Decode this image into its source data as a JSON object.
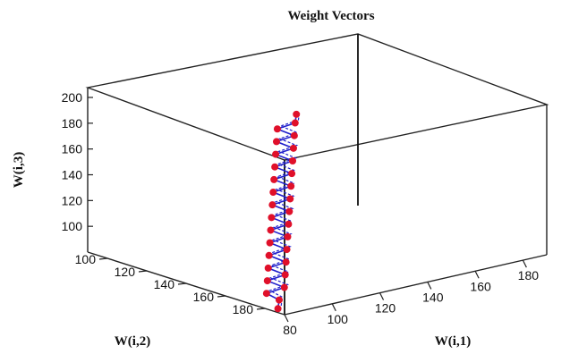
{
  "chart_data": {
    "type": "line",
    "title": "Weight Vectors",
    "xlabel": "W(i,1)",
    "ylabel": "W(i,2)",
    "zlabel": "W(i,3)",
    "x_ticks": [
      "80",
      "100",
      "120",
      "140",
      "160",
      "180"
    ],
    "y_ticks": [
      "100",
      "120",
      "140",
      "160",
      "180"
    ],
    "z_ticks": [
      "100",
      "120",
      "140",
      "160",
      "180",
      "200"
    ],
    "xlim": [
      80,
      190
    ],
    "ylim": [
      90,
      190
    ],
    "zlim": [
      80,
      200
    ],
    "grid": false,
    "line_color": "#2020cc",
    "marker_color": "#e0102a",
    "series": [
      {
        "points": [
          [
            83,
            183,
            80
          ],
          [
            86,
            180,
            84
          ],
          [
            84,
            176,
            88
          ],
          [
            89,
            179,
            92
          ],
          [
            86,
            174,
            96
          ],
          [
            91,
            177,
            100
          ],
          [
            88,
            172,
            104
          ],
          [
            93,
            175,
            108
          ],
          [
            90,
            170,
            112
          ],
          [
            95,
            173,
            116
          ],
          [
            92,
            168,
            120
          ],
          [
            97,
            171,
            124
          ],
          [
            94,
            166,
            128
          ],
          [
            99,
            169,
            132
          ],
          [
            96,
            164,
            136
          ],
          [
            101,
            167,
            140
          ],
          [
            98,
            162,
            144
          ],
          [
            103,
            165,
            148
          ],
          [
            100,
            160,
            152
          ],
          [
            105,
            163,
            156
          ],
          [
            102,
            158,
            160
          ],
          [
            107,
            161,
            164
          ],
          [
            104,
            156,
            168
          ],
          [
            109,
            159,
            172
          ],
          [
            106,
            154,
            176
          ],
          [
            111,
            157,
            180
          ],
          [
            108,
            152,
            184
          ],
          [
            113,
            155,
            188
          ],
          [
            110,
            150,
            192
          ],
          [
            115,
            153,
            196
          ],
          [
            118,
            150,
            200
          ]
        ]
      }
    ]
  }
}
